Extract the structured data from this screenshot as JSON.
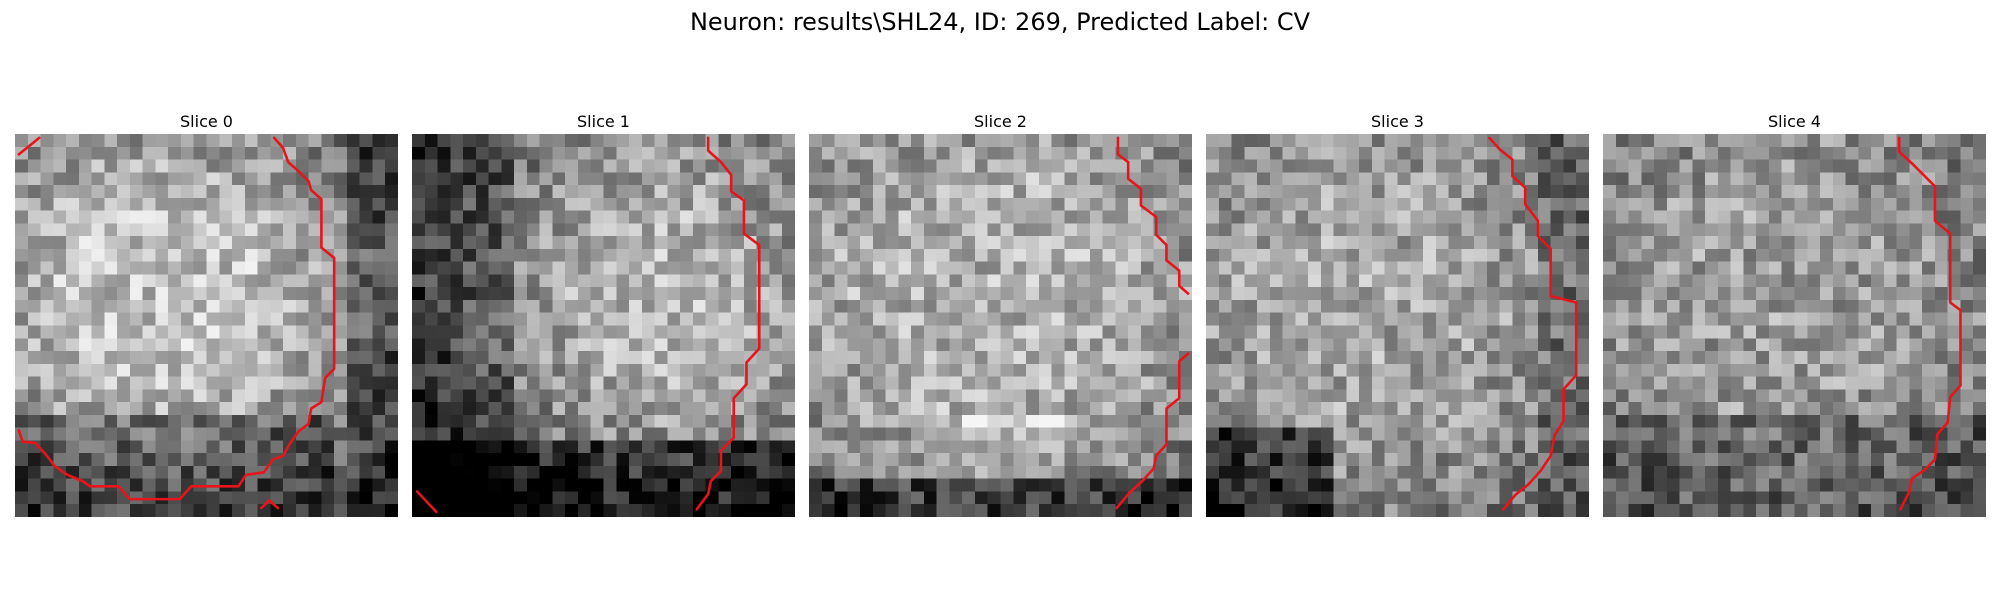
{
  "figure": {
    "title": "Neuron: results\\SHL24, ID: 269, Predicted Label: CV",
    "contour_color": "#e8141c",
    "colormap": "gray"
  },
  "panels": [
    {
      "title": "Slice 0"
    },
    {
      "title": "Slice 1"
    },
    {
      "title": "Slice 2"
    },
    {
      "title": "Slice 3"
    },
    {
      "title": "Slice 4"
    }
  ]
}
